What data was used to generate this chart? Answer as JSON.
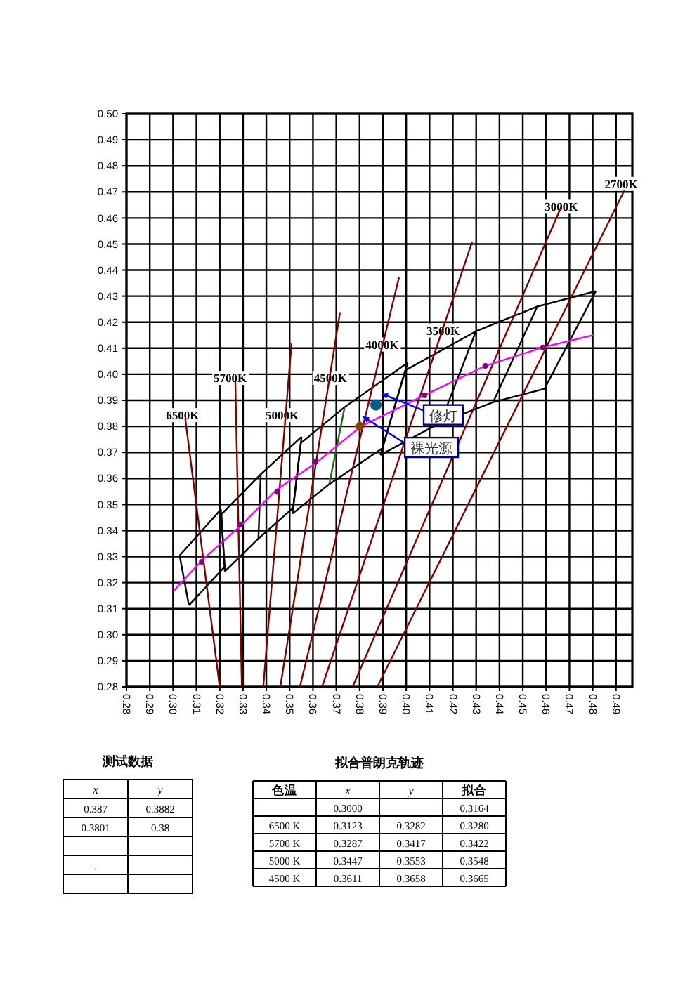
{
  "chart_data": [
    {
      "type": "line",
      "grid": true,
      "xlim": [
        0.28,
        0.497
      ],
      "ylim": [
        0.28,
        0.5
      ],
      "xticks": [
        0.28,
        0.29,
        {
          "value": 0.3,
          "label": "0.30"
        },
        0.31,
        0.32,
        0.33,
        0.34,
        0.35,
        0.36,
        0.37,
        0.38,
        0.39,
        {
          "value": 0.4,
          "label": "0.40"
        },
        0.41,
        0.42,
        0.43,
        0.44,
        0.45,
        0.46,
        0.47,
        0.48,
        0.49
      ],
      "yticks": [
        0.28,
        0.29,
        {
          "value": 0.3,
          "label": "0.30"
        },
        0.31,
        0.32,
        0.33,
        0.34,
        0.35,
        0.36,
        0.37,
        0.38,
        0.39,
        {
          "value": 0.4,
          "label": "0.40"
        },
        0.41,
        0.42,
        0.43,
        0.44,
        0.45,
        0.46,
        0.47,
        0.48,
        0.49,
        {
          "value": 0.5,
          "label": "0.50"
        }
      ],
      "series": [
        {
          "color": "#000000",
          "x": [
            0.3996,
            0.4299,
            0.4562,
            0.4813
          ],
          "values": [
            0.4015,
            0.4165,
            0.426,
            0.4319
          ]
        },
        {
          "color": "#000000",
          "x": [
            0.3548,
            0.3736,
            0.4006
          ],
          "values": [
            0.3736,
            0.3874,
            0.4044
          ]
        },
        {
          "color": "#000000",
          "x": [
            0.3207,
            0.3376,
            0.3551
          ],
          "values": [
            0.3462,
            0.3616,
            0.376
          ]
        },
        {
          "color": "#000000",
          "x": [
            0.3028,
            0.3205
          ],
          "values": [
            0.3304,
            0.3481
          ]
        },
        {
          "color": "#000000",
          "x": [
            0.3889,
            0.4147,
            0.4373,
            0.4593
          ],
          "values": [
            0.369,
            0.3814,
            0.3893,
            0.3944
          ]
        },
        {
          "color": "#000000",
          "x": [
            0.3512,
            0.367,
            0.3898
          ],
          "values": [
            0.3465,
            0.3578,
            0.3716
          ]
        },
        {
          "color": "#000000",
          "x": [
            0.3222,
            0.3366,
            0.3515
          ],
          "values": [
            0.3243,
            0.3369,
            0.3487
          ]
        },
        {
          "color": "#000000",
          "x": [
            0.3068,
            0.3221
          ],
          "values": [
            0.3113,
            0.3261
          ]
        },
        {
          "color": "#000000",
          "x": [
            0.4593,
            0.4813
          ],
          "values": [
            0.3944,
            0.4319
          ]
        },
        {
          "color": "#000000",
          "x": [
            0.4373,
            0.4562
          ],
          "values": [
            0.3893,
            0.426
          ]
        },
        {
          "color": "#000000",
          "x": [
            0.4147,
            0.4299
          ],
          "values": [
            0.3814,
            0.4165
          ]
        },
        {
          "color": "#000000",
          "x": [
            0.3889,
            0.3996
          ],
          "values": [
            0.369,
            0.4015
          ]
        },
        {
          "color": "#000000",
          "x": [
            0.3898,
            0.4006
          ],
          "values": [
            0.3716,
            0.4044
          ]
        },
        {
          "color": "#1a6b1a",
          "x": [
            0.367,
            0.3736
          ],
          "values": [
            0.3578,
            0.3874
          ]
        },
        {
          "color": "#000000",
          "x": [
            0.3512,
            0.3548
          ],
          "values": [
            0.3465,
            0.3736
          ]
        },
        {
          "color": "#000000",
          "x": [
            0.3515,
            0.3551
          ],
          "values": [
            0.3487,
            0.376
          ]
        },
        {
          "color": "#000000",
          "x": [
            0.3366,
            0.3376
          ],
          "values": [
            0.3369,
            0.3616
          ]
        },
        {
          "color": "#000000",
          "x": [
            0.3207,
            0.3222
          ],
          "values": [
            0.3462,
            0.3243
          ]
        },
        {
          "color": "#000000",
          "x": [
            0.3205,
            0.3221
          ],
          "values": [
            0.3481,
            0.3261
          ]
        },
        {
          "color": "#000000",
          "x": [
            0.3028,
            0.3068
          ],
          "values": [
            0.3304,
            0.3113
          ]
        },
        {
          "color": "#800000",
          "x": [
            0.3052,
            0.32
          ],
          "values": [
            0.3831,
            0.28
          ]
        },
        {
          "color": "#800000",
          "x": [
            0.3267,
            0.3295
          ],
          "values": [
            0.3974,
            0.28
          ]
        },
        {
          "color": "#800000",
          "x": [
            0.3508,
            0.3387
          ],
          "values": [
            0.4118,
            0.28
          ]
        },
        {
          "color": "#800000",
          "x": [
            0.3716,
            0.346
          ],
          "values": [
            0.4238,
            0.28
          ]
        },
        {
          "color": "#800000",
          "x": [
            0.3969,
            0.3544
          ],
          "values": [
            0.4372,
            0.28
          ]
        },
        {
          "color": "#800000",
          "x": [
            0.4283,
            0.3639
          ],
          "values": [
            0.4509,
            0.28
          ]
        },
        {
          "color": "#800000",
          "x": [
            0.4665,
            0.377
          ],
          "values": [
            0.4643,
            0.28
          ]
        },
        {
          "color": "#800000",
          "x": [
            0.4936,
            0.3876
          ],
          "values": [
            0.4706,
            0.28
          ]
        },
        {
          "color": "#ff00ff",
          "x": [
            0.3001,
            0.3122,
            0.3289,
            0.3444,
            0.3615,
            0.3806,
            0.4078,
            0.4339,
            0.4586,
            0.4802
          ],
          "values": [
            0.3167,
            0.3284,
            0.3418,
            0.3557,
            0.3661,
            0.38,
            0.3919,
            0.4032,
            0.4103,
            0.415
          ]
        },
        {
          "type": "scatter",
          "marker": "circle",
          "color": "#800080",
          "x": [
            0.3123,
            0.3287,
            0.3447,
            0.3611,
            0.4078,
            0.4339,
            0.4586
          ],
          "values": [
            0.328,
            0.3422,
            0.3548,
            0.3665,
            0.3919,
            0.4032,
            0.4103
          ]
        },
        {
          "type": "scatter",
          "marker": "circle",
          "color": "#005a8c",
          "x": [
            0.387
          ],
          "values": [
            0.3882
          ]
        },
        {
          "type": "scatter",
          "marker": "diamond",
          "color": "#804000",
          "x": [
            0.3801
          ],
          "values": [
            0.38
          ]
        }
      ],
      "annotations": [
        {
          "text": "6500K",
          "x": 0.3041,
          "y": 0.3843
        },
        {
          "text": "5700K",
          "x": 0.3245,
          "y": 0.3986
        },
        {
          "text": "5000K",
          "x": 0.3468,
          "y": 0.3843
        },
        {
          "text": "4500K",
          "x": 0.3675,
          "y": 0.3986
        },
        {
          "text": "4000K",
          "x": 0.3897,
          "y": 0.4114
        },
        {
          "text": "3500K",
          "x": 0.4158,
          "y": 0.4168
        },
        {
          "text": "3000K",
          "x": 0.4665,
          "y": 0.4643
        },
        {
          "text": "2700K",
          "x": 0.4922,
          "y": 0.4731
        },
        {
          "text": "修灯",
          "x": 0.387,
          "y": 0.3882
        },
        {
          "text": "裸光源",
          "x": 0.3801,
          "y": 0.38
        },
        "测试数据",
        "x",
        "y",
        "0.387",
        "0.3882",
        "0.3801",
        "0.38",
        ".",
        "拟合普朗克轨迹",
        "色温",
        "x",
        "y",
        "拟合",
        "0.3000",
        "0.3164",
        "6500 K",
        "0.3123",
        "0.3282",
        "0.3280",
        "5700 K",
        "0.3287",
        "0.3417",
        "0.3422",
        "5000 K",
        "0.3447",
        "0.3553",
        "0.3548",
        "4500 K",
        "0.3611",
        "0.3658",
        "0.3665"
      ]
    }
  ]
}
